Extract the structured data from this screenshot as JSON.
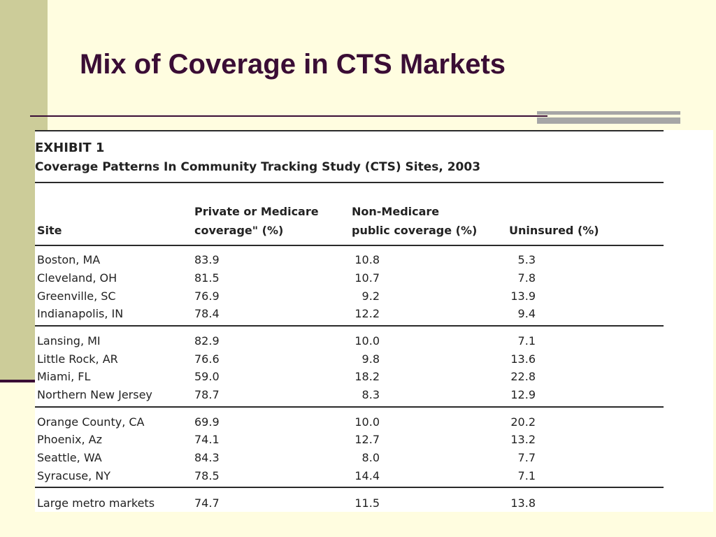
{
  "slide": {
    "title": "Mix of Coverage in CTS Markets"
  },
  "exhibit": {
    "label": "EXHIBIT 1",
    "caption": "Coverage Patterns In Community Tracking Study (CTS) Sites, 2003",
    "columns": {
      "site": "Site",
      "private_line1": "Private or Medicare",
      "private_line2": "coverage\" (%)",
      "public_line1": "Non-Medicare",
      "public_line2": "public coverage (%)",
      "uninsured": "Uninsured (%)"
    },
    "rows": [
      {
        "site": "Boston, MA",
        "private": "83.9",
        "public": "10.8",
        "uninsured": "5.3"
      },
      {
        "site": "Cleveland, OH",
        "private": "81.5",
        "public": "10.7",
        "uninsured": "7.8"
      },
      {
        "site": "Greenville, SC",
        "private": "76.9",
        "public": "9.2",
        "uninsured": "13.9"
      },
      {
        "site": "Indianapolis, IN",
        "private": "78.4",
        "public": "12.2",
        "uninsured": "9.4"
      },
      {
        "site": "Lansing, MI",
        "private": "82.9",
        "public": "10.0",
        "uninsured": "7.1"
      },
      {
        "site": "Little Rock, AR",
        "private": "76.6",
        "public": "9.8",
        "uninsured": "13.6"
      },
      {
        "site": "Miami, FL",
        "private": "59.0",
        "public": "18.2",
        "uninsured": "22.8"
      },
      {
        "site": "Northern New Jersey",
        "private": "78.7",
        "public": "8.3",
        "uninsured": "12.9"
      },
      {
        "site": "Orange County, CA",
        "private": "69.9",
        "public": "10.0",
        "uninsured": "20.2"
      },
      {
        "site": "Phoenix, Az",
        "private": "74.1",
        "public": "12.7",
        "uninsured": "13.2"
      },
      {
        "site": "Seattle, WA",
        "private": "84.3",
        "public": "8.0",
        "uninsured": "7.7"
      },
      {
        "site": "Syracuse, NY",
        "private": "78.5",
        "public": "14.4",
        "uninsured": "7.1"
      },
      {
        "site": "Large metro markets",
        "private": "74.7",
        "public": "11.5",
        "uninsured": "13.8"
      }
    ]
  }
}
